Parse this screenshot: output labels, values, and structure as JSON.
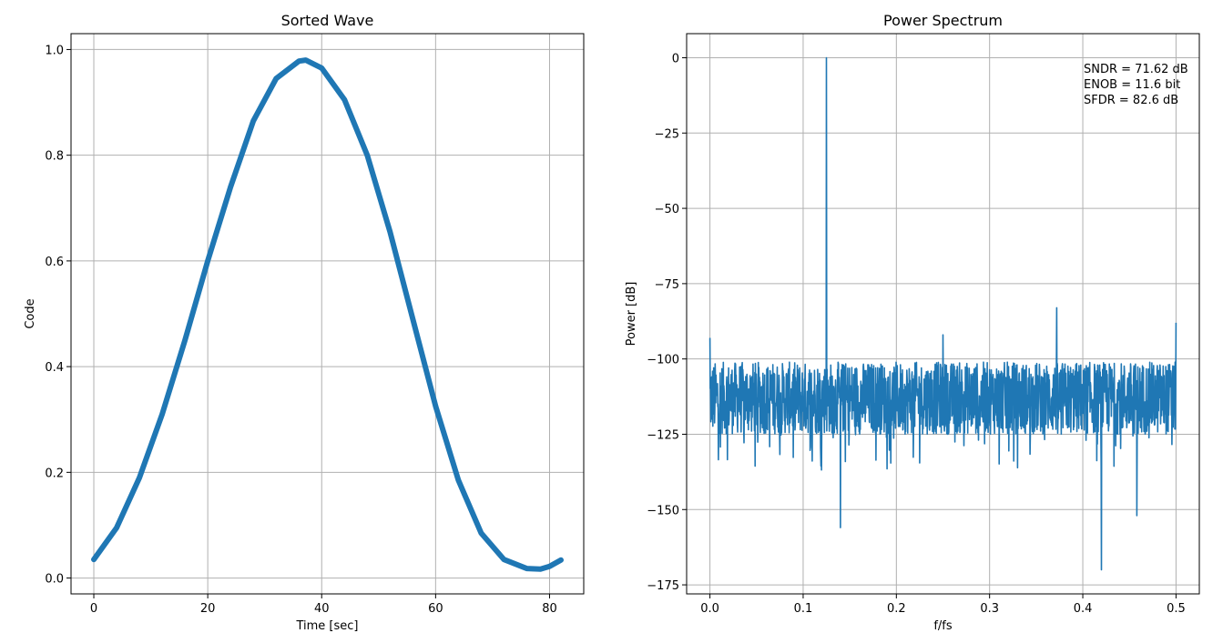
{
  "chart_data": [
    {
      "type": "scatter",
      "title": "Sorted Wave",
      "xlabel": "Time [sec]",
      "ylabel": "Code",
      "xlim": [
        -4,
        86
      ],
      "ylim": [
        -0.03,
        1.03
      ],
      "xticks": [
        0,
        20,
        40,
        60,
        80
      ],
      "yticks": [
        0.0,
        0.2,
        0.4,
        0.6,
        0.8,
        1.0
      ],
      "xtick_labels": [
        "0",
        "20",
        "40",
        "60",
        "80"
      ],
      "ytick_labels": [
        "0.0",
        "0.2",
        "0.4",
        "0.6",
        "0.8",
        "1.0"
      ],
      "grid": true,
      "color": "#1f77b4",
      "series": [
        {
          "x": [
            0,
            4,
            8,
            12,
            16,
            20,
            24,
            28,
            32,
            36,
            37.2,
            40,
            44,
            48,
            52,
            56,
            60,
            64,
            68,
            72,
            76,
            78.4,
            80,
            82
          ],
          "y": [
            0.035,
            0.095,
            0.19,
            0.31,
            0.45,
            0.6,
            0.74,
            0.865,
            0.945,
            0.978,
            0.98,
            0.965,
            0.905,
            0.8,
            0.655,
            0.49,
            0.325,
            0.185,
            0.085,
            0.035,
            0.018,
            0.017,
            0.022,
            0.034
          ]
        }
      ]
    },
    {
      "type": "line",
      "title": "Power Spectrum",
      "xlabel": "f/fs",
      "ylabel": "Power [dB]",
      "xlim": [
        -0.025,
        0.525
      ],
      "ylim": [
        -178,
        8
      ],
      "xticks": [
        0.0,
        0.1,
        0.2,
        0.3,
        0.4,
        0.5
      ],
      "yticks": [
        0,
        -25,
        -50,
        -75,
        -100,
        -125,
        -150,
        -175
      ],
      "xtick_labels": [
        "0.0",
        "0.1",
        "0.2",
        "0.3",
        "0.4",
        "0.5"
      ],
      "ytick_labels": [
        "0",
        "−25",
        "−50",
        "−75",
        "−100",
        "−125",
        "−150",
        "−175"
      ],
      "grid": true,
      "color": "#1f77b4",
      "noise_floor": {
        "mean": -113,
        "upper": -100,
        "lower": -130
      },
      "peaks": [
        {
          "x": 0.0,
          "y": -93
        },
        {
          "x": 0.125,
          "y": 0
        },
        {
          "x": 0.14,
          "y": -156
        },
        {
          "x": 0.25,
          "y": -92
        },
        {
          "x": 0.372,
          "y": -83
        },
        {
          "x": 0.42,
          "y": -170
        },
        {
          "x": 0.458,
          "y": -152
        },
        {
          "x": 0.5,
          "y": -88
        }
      ],
      "annotations": [
        "SNDR = 71.62 dB",
        "ENOB = 11.6 bit",
        "SFDR = 82.6 dB"
      ]
    }
  ]
}
